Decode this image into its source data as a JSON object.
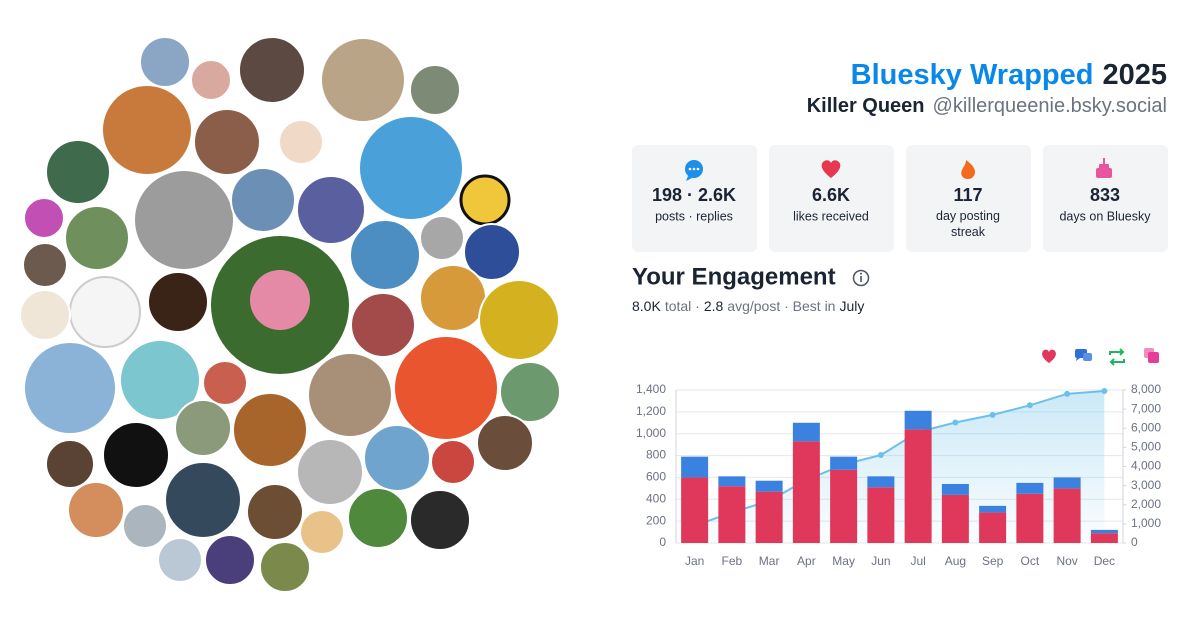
{
  "header": {
    "title": "Bluesky Wrapped",
    "year": "2025",
    "display_name": "Killer Queen",
    "handle": "@killerqueenie.bsky.social"
  },
  "stats": [
    {
      "value": "198 · 2.6K",
      "label": "posts · replies"
    },
    {
      "value": "6.6K",
      "label": "likes received"
    },
    {
      "value": "117",
      "label": "day posting streak"
    },
    {
      "value": "833",
      "label": "days on Bluesky"
    }
  ],
  "engagement": {
    "title": "Your Engagement",
    "total": "8.0K",
    "total_label": "total ·",
    "avg": "2.8",
    "avg_label": "avg/post · Best in",
    "best": "July"
  },
  "chart_data": {
    "type": "bar",
    "stacked": true,
    "grid": true,
    "categories": [
      "Jan",
      "Feb",
      "Mar",
      "Apr",
      "May",
      "Jun",
      "Jul",
      "Aug",
      "Sep",
      "Oct",
      "Nov",
      "Dec"
    ],
    "series": [
      {
        "color": "#e0385a",
        "values": [
          600,
          520,
          470,
          930,
          670,
          510,
          1040,
          440,
          280,
          450,
          500,
          90
        ]
      },
      {
        "color": "#3b82e0",
        "values": [
          190,
          90,
          100,
          170,
          120,
          100,
          170,
          100,
          60,
          100,
          100,
          30
        ]
      },
      {
        "type": "line",
        "axis": "y2",
        "color": "#6cc0ea",
        "values": [
          900,
          1600,
          2200,
          3300,
          4100,
          4600,
          5800,
          6300,
          6700,
          7200,
          7800,
          7950
        ]
      }
    ],
    "ylim": [
      0,
      1400
    ],
    "yticks": [
      0,
      200,
      400,
      600,
      800,
      {
        "value": 1000,
        "label": "1,000"
      },
      {
        "value": 1200,
        "label": "1,200"
      },
      {
        "value": 1400,
        "label": "1,400"
      }
    ],
    "y2lim": [
      0,
      8000
    ],
    "y2ticks": [
      0,
      {
        "value": 1000,
        "label": "1,000"
      },
      {
        "value": 2000,
        "label": "2,000"
      },
      {
        "value": 3000,
        "label": "3,000"
      },
      {
        "value": 4000,
        "label": "4,000"
      },
      {
        "value": 5000,
        "label": "5,000"
      },
      {
        "value": 6000,
        "label": "6,000"
      },
      {
        "value": 7000,
        "label": "7,000"
      },
      {
        "value": 8000,
        "label": "8,000"
      }
    ]
  }
}
